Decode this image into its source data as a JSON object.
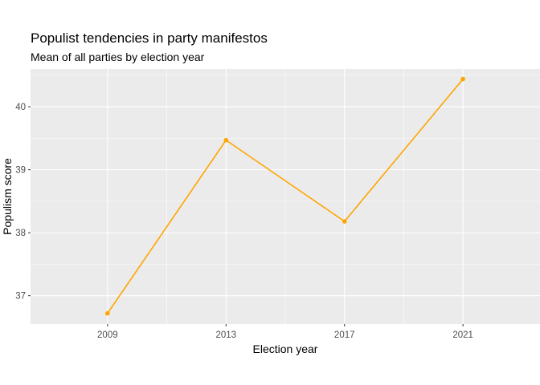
{
  "chart_data": {
    "type": "line",
    "title": "Populist tendencies in party manifestos",
    "subtitle": "Mean of all parties by election year",
    "xlabel": "Election year",
    "ylabel": "Populism score",
    "x": [
      2009,
      2013,
      2017,
      2021
    ],
    "x_tick_labels": [
      "2009",
      "2013",
      "2017",
      "2021"
    ],
    "xlim": [
      2006.4,
      2023.6
    ],
    "y_ticks": [
      37,
      38,
      39,
      40
    ],
    "y_tick_labels": [
      "37",
      "38",
      "39",
      "40"
    ],
    "ylim": [
      36.55,
      40.6
    ],
    "series": [
      {
        "values": [
          36.72,
          39.47,
          38.18,
          40.44
        ],
        "color": "#FFA500"
      }
    ],
    "grid": true,
    "background": "#EBEBEB",
    "legend": "none"
  }
}
